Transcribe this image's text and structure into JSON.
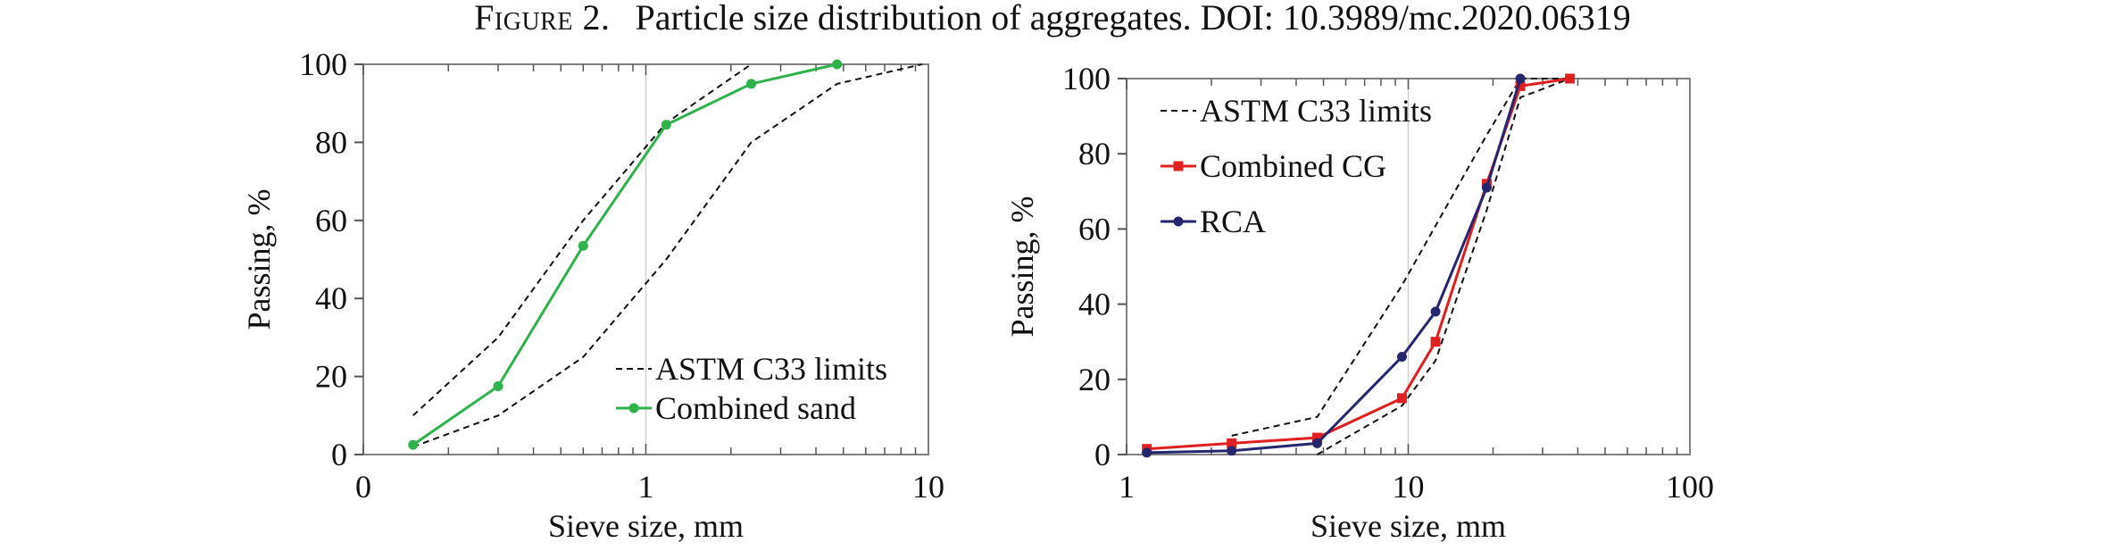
{
  "caption": {
    "label": "Figure 2.",
    "text": "Particle size distribution of aggregates. DOI: 10.3989/mc.2020.06319"
  },
  "chart_data": [
    {
      "type": "line",
      "title": "",
      "xlabel": "Sieve size, mm",
      "ylabel": "Passing, %",
      "xscale": "log",
      "xlim": [
        0.1,
        10
      ],
      "ylim": [
        0,
        100
      ],
      "xticks": [
        0.1,
        1,
        10
      ],
      "xtick_labels": [
        "0",
        "1",
        "10"
      ],
      "yticks": [
        0,
        20,
        40,
        60,
        80,
        100
      ],
      "grid": "vertical line at 1",
      "legend_position": "bottom-right",
      "series": [
        {
          "name": "ASTM C33 limits",
          "style": "dashed",
          "color": "#111111",
          "x": [
            0.15,
            0.3,
            0.6,
            1.18,
            2.36
          ],
          "y": [
            10,
            30,
            60,
            85,
            100
          ]
        },
        {
          "name": "",
          "style": "dashed",
          "color": "#111111",
          "x": [
            0.15,
            0.3,
            0.6,
            1.18,
            2.36,
            4.75,
            9.5
          ],
          "y": [
            2,
            10,
            25,
            50,
            80,
            95,
            100
          ]
        },
        {
          "name": "Combined sand",
          "style": "solid",
          "marker": "circle",
          "color": "#2db34a",
          "x": [
            0.15,
            0.3,
            0.6,
            1.18,
            2.36,
            4.75
          ],
          "y": [
            2.5,
            17.5,
            53.5,
            84.5,
            95,
            100
          ]
        }
      ],
      "legend": [
        "ASTM C33 limits",
        "Combined sand"
      ]
    },
    {
      "type": "line",
      "title": "",
      "xlabel": "Sieve size, mm",
      "ylabel": "Passing, %",
      "xscale": "log",
      "xlim": [
        1,
        100
      ],
      "ylim": [
        0,
        100
      ],
      "xticks": [
        1,
        10,
        100
      ],
      "xtick_labels": [
        "1",
        "10",
        "100"
      ],
      "yticks": [
        0,
        20,
        40,
        60,
        80,
        100
      ],
      "grid": "vertical line at 10",
      "legend_position": "top-left",
      "series": [
        {
          "name": "ASTM C33 limits",
          "style": "dashed",
          "color": "#111111",
          "x": [
            2.36,
            4.75,
            9.5,
            19,
            25,
            37.5
          ],
          "y": [
            5,
            10,
            45,
            85,
            100,
            100
          ]
        },
        {
          "name": "",
          "style": "dashed",
          "color": "#111111",
          "x": [
            4.75,
            9.5,
            12.5,
            19,
            25,
            37.5
          ],
          "y": [
            0,
            13,
            25,
            65,
            95,
            100
          ]
        },
        {
          "name": "Combined CG",
          "style": "solid",
          "marker": "square",
          "color": "#e02020",
          "x": [
            1.18,
            2.36,
            4.75,
            9.5,
            12.5,
            19,
            25,
            37.5
          ],
          "y": [
            1.5,
            3,
            4.5,
            15,
            30,
            72,
            98,
            100
          ]
        },
        {
          "name": "RCA",
          "style": "solid",
          "marker": "circle",
          "color": "#25276e",
          "x": [
            1.18,
            2.36,
            4.75,
            9.5,
            12.5,
            19,
            25
          ],
          "y": [
            0.5,
            1,
            3,
            26,
            38,
            71,
            100
          ]
        }
      ],
      "legend": [
        "ASTM C33 limits",
        "Combined CG",
        "RCA"
      ]
    }
  ]
}
